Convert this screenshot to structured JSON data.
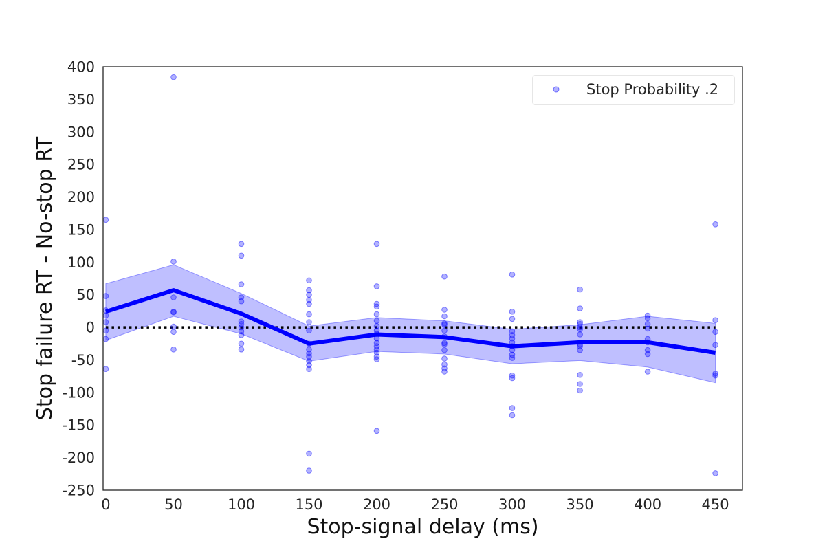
{
  "chart_data": {
    "type": "scatter",
    "title": "",
    "xlabel": "Stop-signal delay (ms)",
    "ylabel": "Stop failure RT - No-stop RT",
    "xlim": [
      -2,
      470
    ],
    "ylim": [
      -250,
      400
    ],
    "xticks": [
      "0",
      "50",
      "100",
      "150",
      "200",
      "250",
      "300",
      "350",
      "400",
      "450"
    ],
    "yticks": [
      "400",
      "350",
      "300",
      "250",
      "200",
      "150",
      "100",
      "50",
      "0",
      "-50",
      "-100",
      "-150",
      "-200",
      "-250"
    ],
    "grid": false,
    "legend_position": "top-right",
    "colors": {
      "series": "#0000ff",
      "band": "#0000ff",
      "reference": "#000000",
      "axes": "#262626"
    },
    "reference_line_y": 0,
    "series": [
      {
        "name": "Stop Probability .2",
        "style": "scatter",
        "points": [
          [
            0,
            165
          ],
          [
            0,
            48
          ],
          [
            0,
            26
          ],
          [
            0,
            18
          ],
          [
            0,
            8
          ],
          [
            0,
            -5
          ],
          [
            0,
            -18
          ],
          [
            0,
            -64
          ],
          [
            50,
            384
          ],
          [
            50,
            101
          ],
          [
            50,
            46
          ],
          [
            50,
            24
          ],
          [
            50,
            23
          ],
          [
            50,
            1
          ],
          [
            50,
            -7
          ],
          [
            50,
            -34
          ],
          [
            100,
            128
          ],
          [
            100,
            110
          ],
          [
            100,
            66
          ],
          [
            100,
            46
          ],
          [
            100,
            40
          ],
          [
            100,
            9
          ],
          [
            100,
            5
          ],
          [
            100,
            0
          ],
          [
            100,
            -6
          ],
          [
            100,
            -12
          ],
          [
            100,
            -25
          ],
          [
            100,
            -34
          ],
          [
            150,
            72
          ],
          [
            150,
            57
          ],
          [
            150,
            50
          ],
          [
            150,
            42
          ],
          [
            150,
            36
          ],
          [
            150,
            20
          ],
          [
            150,
            8
          ],
          [
            150,
            -5
          ],
          [
            150,
            -25
          ],
          [
            150,
            -34
          ],
          [
            150,
            -40
          ],
          [
            150,
            -45
          ],
          [
            150,
            -52
          ],
          [
            150,
            -58
          ],
          [
            150,
            -64
          ],
          [
            150,
            -194
          ],
          [
            150,
            -220
          ],
          [
            200,
            128
          ],
          [
            200,
            63
          ],
          [
            200,
            36
          ],
          [
            200,
            32
          ],
          [
            200,
            20
          ],
          [
            200,
            10
          ],
          [
            200,
            2
          ],
          [
            200,
            -5
          ],
          [
            200,
            -10
          ],
          [
            200,
            -17
          ],
          [
            200,
            -24
          ],
          [
            200,
            -29
          ],
          [
            200,
            -34
          ],
          [
            200,
            -39
          ],
          [
            200,
            -45
          ],
          [
            200,
            -49
          ],
          [
            200,
            -159
          ],
          [
            250,
            78
          ],
          [
            250,
            27
          ],
          [
            250,
            17
          ],
          [
            250,
            6
          ],
          [
            250,
            4
          ],
          [
            250,
            -5
          ],
          [
            250,
            -14
          ],
          [
            250,
            -24
          ],
          [
            250,
            -26
          ],
          [
            250,
            -35
          ],
          [
            250,
            -48
          ],
          [
            250,
            -57
          ],
          [
            250,
            -63
          ],
          [
            250,
            -68
          ],
          [
            300,
            81
          ],
          [
            300,
            24
          ],
          [
            300,
            13
          ],
          [
            300,
            -6
          ],
          [
            300,
            -12
          ],
          [
            300,
            -17
          ],
          [
            300,
            -23
          ],
          [
            300,
            -29
          ],
          [
            300,
            -35
          ],
          [
            300,
            -42
          ],
          [
            300,
            -47
          ],
          [
            300,
            -74
          ],
          [
            300,
            -78
          ],
          [
            300,
            -124
          ],
          [
            300,
            -135
          ],
          [
            350,
            58
          ],
          [
            350,
            29
          ],
          [
            350,
            8
          ],
          [
            350,
            5
          ],
          [
            350,
            0
          ],
          [
            350,
            -3
          ],
          [
            350,
            -11
          ],
          [
            350,
            -26
          ],
          [
            350,
            -29
          ],
          [
            350,
            -35
          ],
          [
            350,
            -73
          ],
          [
            350,
            -87
          ],
          [
            350,
            -97
          ],
          [
            400,
            18
          ],
          [
            400,
            14
          ],
          [
            400,
            5
          ],
          [
            400,
            -2
          ],
          [
            400,
            -18
          ],
          [
            400,
            -23
          ],
          [
            400,
            -35
          ],
          [
            400,
            -41
          ],
          [
            400,
            -68
          ],
          [
            450,
            158
          ],
          [
            450,
            11
          ],
          [
            450,
            -7
          ],
          [
            450,
            -27
          ],
          [
            450,
            -71
          ],
          [
            450,
            -74
          ],
          [
            450,
            -224
          ]
        ]
      }
    ],
    "mean_line": {
      "x": [
        0,
        50,
        100,
        150,
        200,
        250,
        300,
        350,
        400,
        450
      ],
      "y": [
        24,
        57,
        21,
        -25,
        -11,
        -15,
        -29,
        -23,
        -23,
        -39
      ]
    },
    "confidence_band": {
      "x": [
        0,
        50,
        100,
        150,
        200,
        250,
        300,
        350,
        400,
        450
      ],
      "upper": [
        67,
        96,
        52,
        2,
        15,
        10,
        -3,
        4,
        17,
        6
      ],
      "lower": [
        -20,
        17,
        -10,
        -52,
        -37,
        -41,
        -56,
        -51,
        -61,
        -85
      ]
    }
  }
}
